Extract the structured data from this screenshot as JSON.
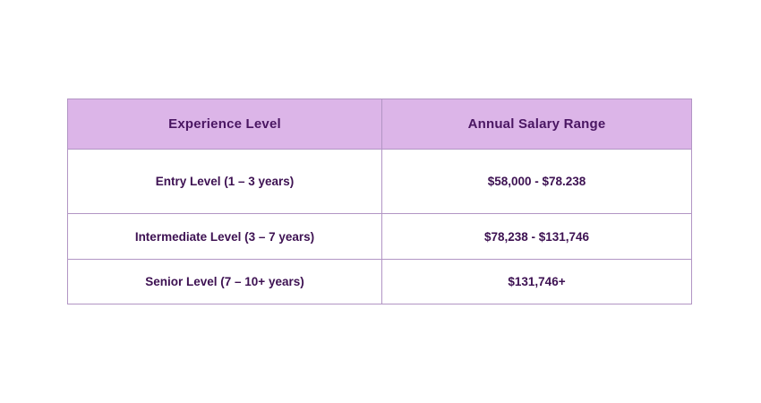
{
  "colors": {
    "header_bg": "#dcb5e8",
    "header_text": "#4a1662",
    "body_text": "#3d1152",
    "border": "#b295c4",
    "page_bg": "#ffffff"
  },
  "chart_data": {
    "type": "table",
    "title": "",
    "columns": [
      "Experience Level",
      "Annual Salary Range"
    ],
    "rows": [
      [
        "Entry Level (1 – 3 years)",
        "$58,000 - $78.238"
      ],
      [
        "Intermediate Level (3 – 7 years)",
        "$78,238 - $131,746"
      ],
      [
        "Senior Level (7 – 10+ years)",
        "$131,746+"
      ]
    ]
  }
}
